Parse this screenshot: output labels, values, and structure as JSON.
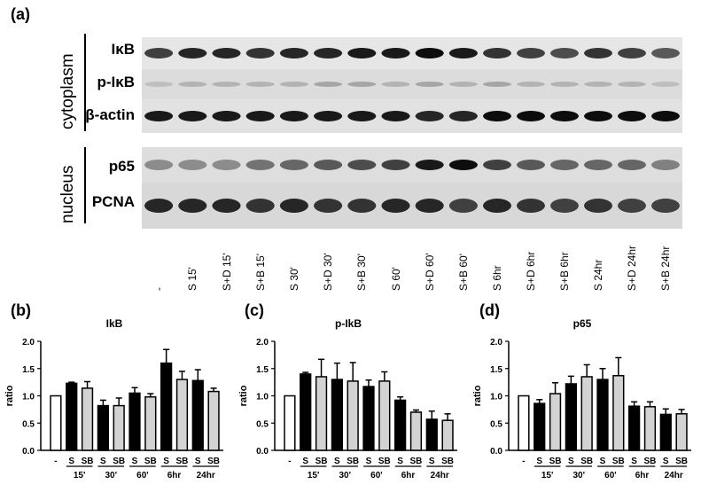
{
  "panel_a": {
    "letter": "(a)",
    "sections": {
      "cytoplasm": "cytoplasm",
      "nucleus": "nucleus"
    },
    "blots": [
      {
        "label": "IκB",
        "intensity": [
          0.75,
          0.85,
          0.85,
          0.8,
          0.85,
          0.85,
          0.9,
          0.9,
          0.95,
          0.9,
          0.8,
          0.75,
          0.7,
          0.8,
          0.75,
          0.65
        ]
      },
      {
        "label": "p-IκB",
        "intensity": [
          0.25,
          0.3,
          0.3,
          0.3,
          0.3,
          0.35,
          0.35,
          0.3,
          0.35,
          0.3,
          0.35,
          0.3,
          0.3,
          0.3,
          0.3,
          0.25
        ]
      },
      {
        "label": "β-actin",
        "intensity": [
          0.9,
          0.9,
          0.9,
          0.9,
          0.9,
          0.9,
          0.9,
          0.9,
          0.85,
          0.85,
          0.95,
          0.95,
          0.95,
          0.95,
          0.95,
          0.95
        ]
      },
      {
        "label": "p65",
        "intensity": [
          0.45,
          0.45,
          0.45,
          0.55,
          0.6,
          0.65,
          0.7,
          0.75,
          0.9,
          0.95,
          0.75,
          0.65,
          0.6,
          0.6,
          0.6,
          0.5
        ]
      },
      {
        "label": "PCNA",
        "intensity": [
          0.85,
          0.85,
          0.85,
          0.8,
          0.85,
          0.8,
          0.8,
          0.85,
          0.85,
          0.75,
          0.85,
          0.8,
          0.75,
          0.8,
          0.75,
          0.75
        ]
      }
    ],
    "lanes": [
      "-",
      "S 15'",
      "S+D 15'",
      "S+B 15'",
      "S 30'",
      "S+D 30'",
      "S+B 30'",
      "S 60'",
      "S+D 60'",
      "S+B 60'",
      "S 6hr",
      "S+D 6hr",
      "S+B 6hr",
      "S 24hr",
      "S+D 24hr",
      "S+B 24hr"
    ]
  },
  "chart_data": [
    {
      "type": "bar",
      "letter": "(b)",
      "title": "IkB",
      "ylabel": "ratio",
      "ylim": [
        0,
        2.0
      ],
      "yticks": [
        "0.0",
        "0.5",
        "1.0",
        "1.5",
        "2.0"
      ],
      "bar_labels": [
        "-",
        "S",
        "SB",
        "S",
        "SB",
        "S",
        "SB",
        "S",
        "SB",
        "S",
        "SB"
      ],
      "group_labels": [
        "15'",
        "30'",
        "60'",
        "6hr",
        "24hr"
      ],
      "values": [
        1.0,
        1.23,
        1.14,
        0.82,
        0.82,
        1.05,
        0.98,
        1.6,
        1.3,
        1.28,
        1.08
      ],
      "errors": [
        0,
        0.02,
        0.12,
        0.1,
        0.14,
        0.1,
        0.06,
        0.25,
        0.15,
        0.2,
        0.06
      ],
      "colors": [
        "#ffffff",
        "#000000",
        "#d3d3d3",
        "#000000",
        "#d3d3d3",
        "#000000",
        "#d3d3d3",
        "#000000",
        "#d3d3d3",
        "#000000",
        "#d3d3d3"
      ]
    },
    {
      "type": "bar",
      "letter": "(c)",
      "title": "p-IkB",
      "ylabel": "ratio",
      "ylim": [
        0,
        2.0
      ],
      "yticks": [
        "0.0",
        "0.5",
        "1.0",
        "1.5",
        "2.0"
      ],
      "bar_labels": [
        "-",
        "S",
        "SB",
        "S",
        "SB",
        "S",
        "SB",
        "S",
        "SB",
        "S",
        "SB"
      ],
      "group_labels": [
        "15'",
        "30'",
        "60'",
        "6hr",
        "24hr"
      ],
      "values": [
        1.0,
        1.4,
        1.35,
        1.3,
        1.27,
        1.17,
        1.27,
        0.92,
        0.7,
        0.57,
        0.55
      ],
      "errors": [
        0,
        0.03,
        0.32,
        0.3,
        0.34,
        0.12,
        0.17,
        0.06,
        0.04,
        0.15,
        0.12
      ],
      "colors": [
        "#ffffff",
        "#000000",
        "#d3d3d3",
        "#000000",
        "#d3d3d3",
        "#000000",
        "#d3d3d3",
        "#000000",
        "#d3d3d3",
        "#000000",
        "#d3d3d3"
      ]
    },
    {
      "type": "bar",
      "letter": "(d)",
      "title": "p65",
      "ylabel": "ratio",
      "ylim": [
        0,
        2.0
      ],
      "yticks": [
        "0.0",
        "0.5",
        "1.0",
        "1.5",
        "2.0"
      ],
      "bar_labels": [
        "-",
        "S",
        "SB",
        "S",
        "SB",
        "S",
        "SB",
        "S",
        "SB",
        "S",
        "SB"
      ],
      "group_labels": [
        "15'",
        "30'",
        "60'",
        "6hr",
        "24hr"
      ],
      "values": [
        1.0,
        0.86,
        1.04,
        1.22,
        1.35,
        1.3,
        1.37,
        0.81,
        0.8,
        0.66,
        0.67
      ],
      "errors": [
        0,
        0.07,
        0.2,
        0.14,
        0.22,
        0.2,
        0.33,
        0.08,
        0.09,
        0.1,
        0.08
      ],
      "colors": [
        "#ffffff",
        "#000000",
        "#d3d3d3",
        "#000000",
        "#d3d3d3",
        "#000000",
        "#d3d3d3",
        "#000000",
        "#d3d3d3",
        "#000000",
        "#d3d3d3"
      ]
    }
  ]
}
